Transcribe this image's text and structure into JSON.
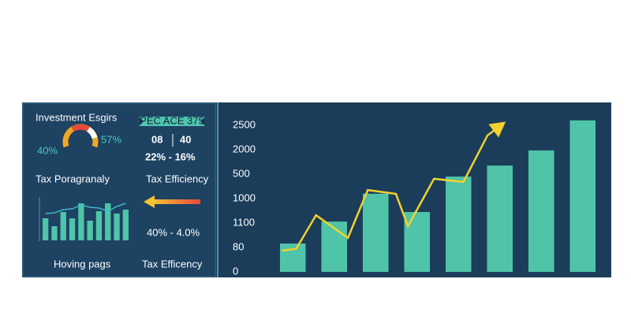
{
  "panel": {
    "title": "Investment Esgirs",
    "gauge_left": "40%",
    "gauge_right": "57%",
    "ribbon": "PEC ACE 375",
    "stat_a": "08",
    "stat_b": "40",
    "stat_pct": "22% - 16%",
    "label_left": "Tax Poragranaly",
    "label_right": "Tax Efficiency",
    "range": "40% - 4.0%",
    "footer_left": "Hoving pags",
    "footer_right": "Tax Efficency"
  },
  "chart_data": [
    {
      "type": "bar",
      "values": [
        56,
        36,
        72,
        56,
        94,
        50,
        74,
        94,
        68,
        78
      ],
      "color": "#4fc4a8",
      "ylim": [
        0,
        100
      ],
      "line_values": [
        68,
        70,
        78,
        80,
        90,
        84,
        82,
        74,
        86,
        94
      ],
      "line_color": "#3fb6c6"
    },
    {
      "type": "bar",
      "values": [
        1.16,
        2.06,
        3.2,
        2.45,
        3.9,
        4.35,
        4.97,
        6.2
      ],
      "color": "#4fc4a8",
      "ylim": [
        0,
        6.9
      ],
      "xlim": [
        0,
        8
      ],
      "yticks": [
        0,
        {
          "value": 1,
          "label": "80"
        },
        {
          "value": 2,
          "label": "1100"
        },
        {
          "value": 3,
          "label": "1000"
        },
        {
          "value": 4,
          "label": "500"
        },
        {
          "value": 5,
          "label": "2000"
        },
        {
          "value": 6,
          "label": "2500"
        }
      ],
      "line": {
        "color": "#f2d22e",
        "x": [
          0.23,
          0.58,
          1.06,
          1.83,
          2.31,
          2.99,
          3.28,
          3.91,
          4.62,
          5.2,
          5.55
        ],
        "y": [
          0.87,
          0.94,
          2.32,
          1.39,
          3.35,
          3.19,
          1.87,
          3.81,
          3.68,
          5.58,
          6.03
        ]
      }
    }
  ]
}
